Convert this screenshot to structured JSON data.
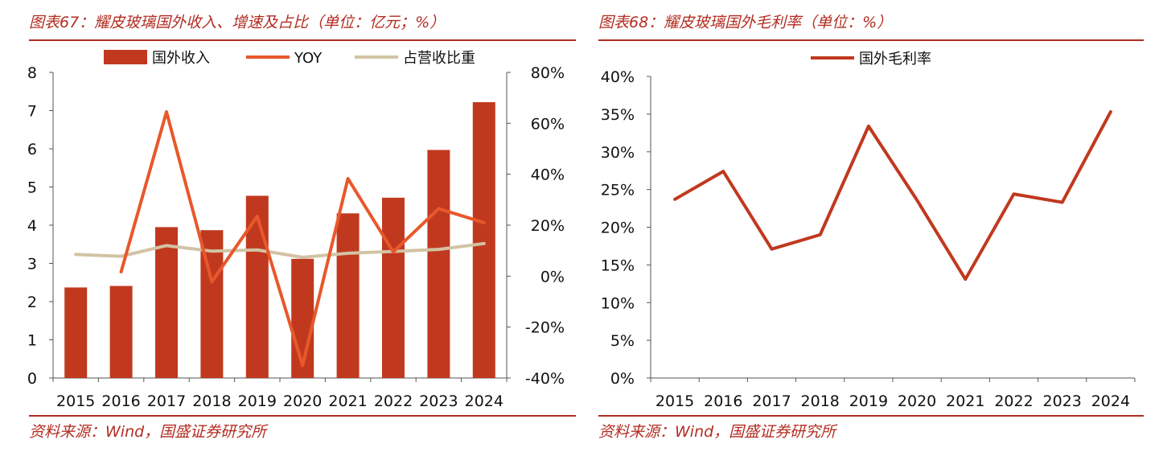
{
  "left": {
    "figure_title": "图表67：耀皮玻璃国外收入、增速及占比（单位：亿元；%）",
    "source": "资料来源：Wind，国盛证券研究所"
  },
  "right": {
    "figure_title": "图表68：耀皮玻璃国外毛利率（单位：%）",
    "source": "资料来源：Wind，国盛证券研究所"
  },
  "colors": {
    "accent": "#b22d22",
    "bar": "#c0391f",
    "yoy_line": "#e8582b",
    "share_line": "#d2c3a4",
    "margin_line": "#c0391f",
    "axis": "#555555"
  },
  "chart_data": [
    {
      "type": "bar",
      "title": "耀皮玻璃国外收入、增速及占比",
      "categories": [
        "2015",
        "2016",
        "2017",
        "2018",
        "2019",
        "2020",
        "2021",
        "2022",
        "2023",
        "2024"
      ],
      "ylim": [
        0,
        8
      ],
      "yticks": [
        "0",
        "1",
        "2",
        "3",
        "4",
        "5",
        "6",
        "7",
        "8"
      ],
      "y2lim": [
        -40,
        80
      ],
      "y2ticks": [
        "-40%",
        "-20%",
        "0%",
        "20%",
        "40%",
        "60%",
        "80%"
      ],
      "legend": [
        "国外收入",
        "YOY",
        "占营收比重"
      ],
      "series": [
        {
          "name": "国外收入",
          "type": "bar",
          "axis": "left",
          "values": [
            2.37,
            2.41,
            3.95,
            3.87,
            4.77,
            3.12,
            4.31,
            4.72,
            5.97,
            7.22
          ]
        },
        {
          "name": "YOY",
          "type": "line",
          "axis": "right",
          "values": [
            null,
            1.7,
            64.5,
            -2.2,
            23.5,
            -35.0,
            38.3,
            9.5,
            26.5,
            21.0
          ]
        },
        {
          "name": "占营收比重",
          "type": "line",
          "axis": "right",
          "values": [
            8.5,
            7.8,
            12.0,
            9.8,
            10.3,
            7.4,
            9.0,
            9.7,
            10.5,
            12.8
          ]
        }
      ]
    },
    {
      "type": "line",
      "title": "耀皮玻璃国外毛利率",
      "categories": [
        "2015",
        "2016",
        "2017",
        "2018",
        "2019",
        "2020",
        "2021",
        "2022",
        "2023",
        "2024"
      ],
      "ylim": [
        0,
        40
      ],
      "yticks": [
        "0%",
        "5%",
        "10%",
        "15%",
        "20%",
        "25%",
        "30%",
        "35%",
        "40%"
      ],
      "legend": [
        "国外毛利率"
      ],
      "series": [
        {
          "name": "国外毛利率",
          "values": [
            23.7,
            27.4,
            17.1,
            19.0,
            33.4,
            23.6,
            13.1,
            24.4,
            23.3,
            35.3
          ]
        }
      ]
    }
  ]
}
